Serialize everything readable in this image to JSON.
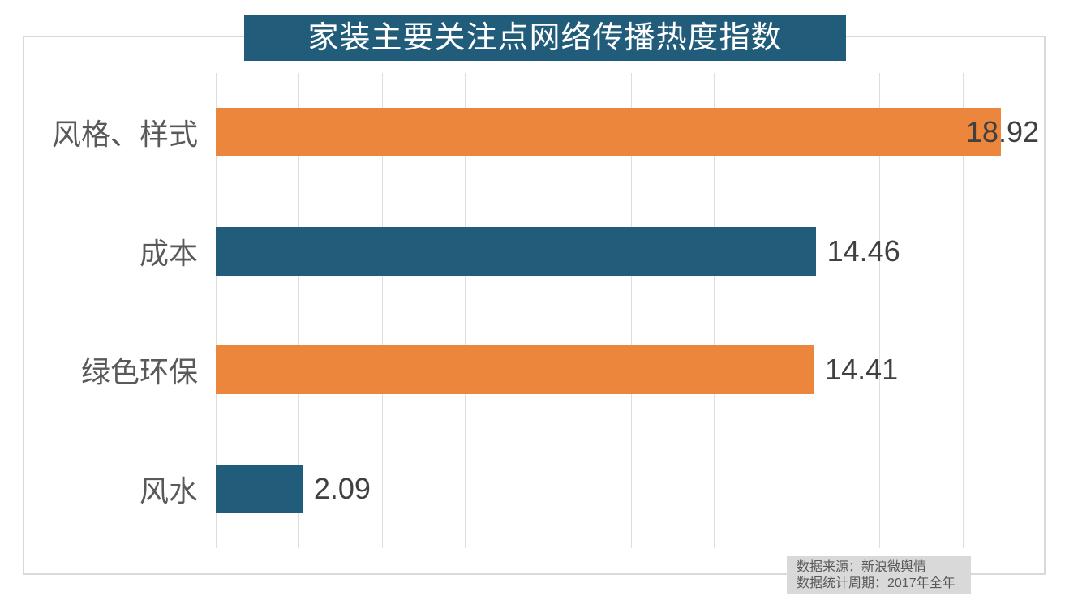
{
  "title": "家装主要关注点网络传播热度指数",
  "footer": {
    "line1": "数据来源：新浪微舆情",
    "line2": "数据统计周期：2017年全年"
  },
  "colors": {
    "title_bg": "#215c7a",
    "bar_orange": "#ec863d",
    "bar_teal": "#215c7a",
    "gridline": "#dedede",
    "outer_border": "#d9d9d9",
    "category_text": "#595959",
    "value_text": "#404040",
    "footer_bg": "#d9d9d9",
    "footer_text": "#595959"
  },
  "chart_data": {
    "type": "bar",
    "orientation": "horizontal",
    "title": "家装主要关注点网络传播热度指数",
    "categories": [
      "风格、样式",
      "成本",
      "绿色环保",
      "风水"
    ],
    "values": [
      18.92,
      14.46,
      14.41,
      2.09
    ],
    "data_labels": [
      "18.92",
      "14.46",
      "14.41",
      "2.09"
    ],
    "bar_colors": [
      "#ec863d",
      "#215c7a",
      "#ec863d",
      "#215c7a"
    ],
    "xlim": [
      0,
      20
    ],
    "tick_interval": 2,
    "grid": true,
    "legend": false,
    "xlabel": "",
    "ylabel": "",
    "source_note": "数据来源：新浪微舆情",
    "period_note": "数据统计周期：2017年全年"
  }
}
